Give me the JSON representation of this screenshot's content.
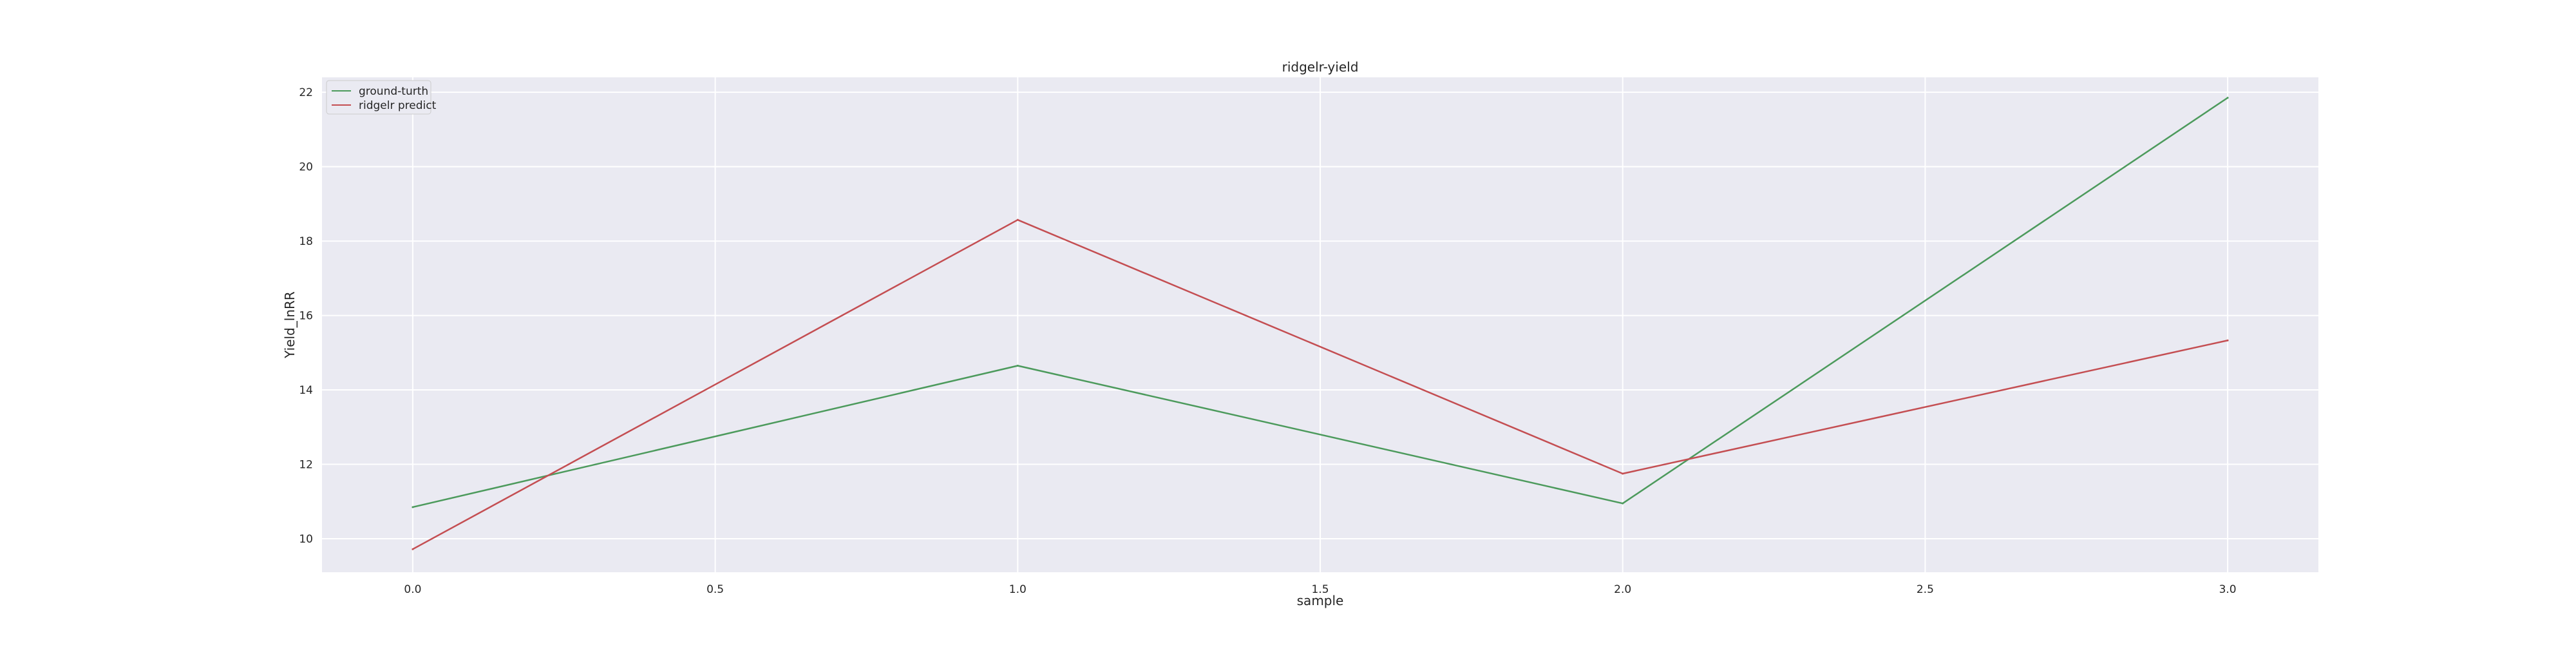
{
  "chart_data": {
    "type": "line",
    "title": "ridgelr-yield",
    "xlabel": "sample",
    "ylabel": "Yield_lnRR",
    "x": [
      0,
      1,
      2,
      3
    ],
    "series": [
      {
        "name": "ground-turth",
        "color": "#4c9a5c",
        "values": [
          10.85,
          14.65,
          10.95,
          21.85
        ]
      },
      {
        "name": "ridgelr predict",
        "color": "#c44e52",
        "values": [
          9.72,
          18.57,
          11.75,
          15.33
        ]
      }
    ],
    "xlim": [
      -0.15,
      3.15
    ],
    "ylim": [
      9.1,
      22.4
    ],
    "xticks": [
      "0.0",
      "0.5",
      "1.0",
      "1.5",
      "2.0",
      "2.5",
      "3.0"
    ],
    "yticks": [
      "10",
      "12",
      "14",
      "16",
      "18",
      "20",
      "22"
    ],
    "grid": true,
    "legend_position": "top-left",
    "background_color": "#eaeaf2"
  }
}
